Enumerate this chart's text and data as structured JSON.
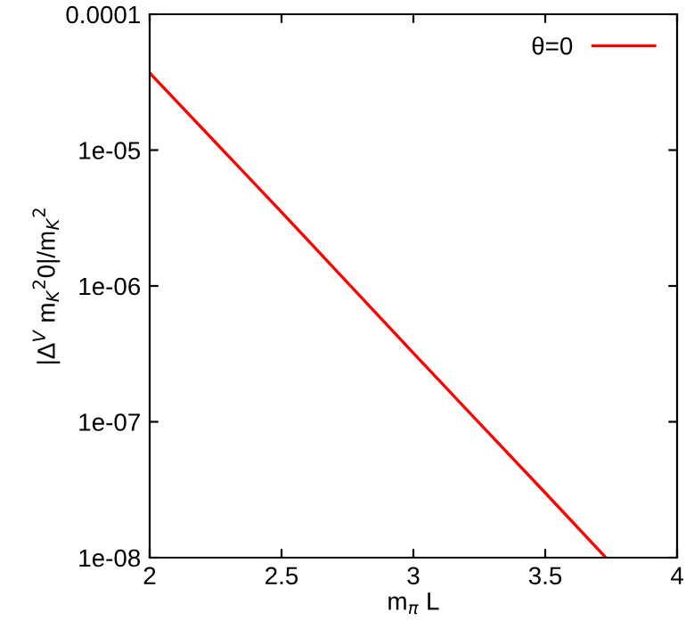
{
  "chart_data": {
    "type": "line",
    "xlabel": "m$_{π}$ L",
    "ylabel": "|Δ$^{V}$ m$_{K}$$^{2}$0|/m$_{K}$$^{2}$",
    "log": "y",
    "x": [
      2,
      2.5,
      3,
      3.5,
      3.73
    ],
    "series": [
      {
        "name": "θ=0",
        "color": "#ff0000",
        "values": [
          3.7e-05,
          3.5e-06,
          3.2e-07,
          3e-08,
          1e-08
        ]
      }
    ],
    "xlim": [
      2,
      4
    ],
    "xticks": [
      2,
      2.5,
      3,
      3.5,
      4
    ],
    "ylim": [
      1e-08,
      0.0001
    ],
    "yticks": [
      {
        "value": 1e-08,
        "label": "1e-08"
      },
      {
        "value": 1e-07,
        "label": "1e-07"
      },
      {
        "value": 1e-06,
        "label": "1e-06"
      },
      {
        "value": 1e-05,
        "label": "1e-05"
      },
      {
        "value": 0.0001,
        "label": "0.0001"
      }
    ],
    "legend": "top right",
    "grid": false,
    "marker": "none",
    "line_style": "solid"
  }
}
